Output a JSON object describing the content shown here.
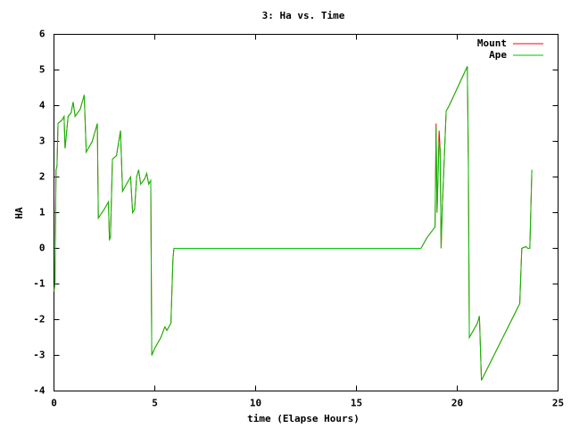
{
  "chart_data": {
    "type": "line",
    "title": "3: Ha vs. Time",
    "x_label": "time (Elapse Hours)",
    "y_label": "HA",
    "x": [
      0,
      0.05,
      0.1,
      0.15,
      0.2,
      0.4,
      0.5,
      0.55,
      0.7,
      0.85,
      0.95,
      1.05,
      1.3,
      1.5,
      1.6,
      1.9,
      2.1,
      2.15,
      2.2,
      2.5,
      2.7,
      2.75,
      2.8,
      2.9,
      3.1,
      3.3,
      3.4,
      3.7,
      3.8,
      3.9,
      4.0,
      4.1,
      4.2,
      4.3,
      4.5,
      4.6,
      4.7,
      4.8,
      4.85,
      5.0,
      5.3,
      5.5,
      5.6,
      5.8,
      5.9,
      5.95,
      18.2,
      18.5,
      18.9,
      18.95,
      19.0,
      19.1,
      19.15,
      19.2,
      19.25,
      19.45,
      19.6,
      20.5,
      20.55,
      20.6,
      21.0,
      21.1,
      21.2,
      23.1,
      23.2,
      23.4,
      23.5,
      23.6,
      23.7
    ],
    "series": [
      {
        "name": "Mount",
        "color": "#ff0000",
        "values": [
          -1.2,
          -1.0,
          2.2,
          2.3,
          3.5,
          3.6,
          3.7,
          2.8,
          3.7,
          3.8,
          4.1,
          3.7,
          3.9,
          4.3,
          2.7,
          3.0,
          3.4,
          3.5,
          0.85,
          1.1,
          1.3,
          0.25,
          0.3,
          2.5,
          2.6,
          3.3,
          1.6,
          1.9,
          2.0,
          1.0,
          1.1,
          2.0,
          2.2,
          1.8,
          1.95,
          2.1,
          1.8,
          1.9,
          -3.0,
          -2.8,
          -2.5,
          -2.2,
          -2.3,
          -2.1,
          -0.3,
          0,
          0,
          0.3,
          0.6,
          3.5,
          1.0,
          3.3,
          2.8,
          0,
          1.0,
          3.85,
          4.0,
          5.1,
          2.5,
          -2.5,
          -2.1,
          -1.9,
          -3.7,
          -1.55,
          0,
          0.05,
          0,
          0,
          2.2
        ]
      },
      {
        "name": "Ape",
        "color": "#00c000",
        "values": [
          -1.2,
          -1.0,
          2.2,
          2.3,
          3.5,
          3.6,
          3.7,
          2.8,
          3.7,
          3.8,
          4.1,
          3.7,
          3.9,
          4.3,
          2.7,
          3.0,
          3.4,
          3.5,
          0.85,
          1.1,
          1.3,
          0.25,
          0.3,
          2.5,
          2.6,
          3.3,
          1.6,
          1.9,
          2.0,
          1.0,
          1.1,
          2.0,
          2.2,
          1.8,
          1.95,
          2.1,
          1.8,
          1.9,
          -3.0,
          -2.8,
          -2.5,
          -2.2,
          -2.3,
          -2.1,
          -0.3,
          0,
          0,
          0.3,
          0.6,
          3.4,
          1.0,
          3.0,
          2.8,
          0,
          1.0,
          3.85,
          4.0,
          5.1,
          2.5,
          -2.5,
          -2.1,
          -1.9,
          -3.7,
          -1.55,
          0,
          0.05,
          0,
          0,
          2.2
        ]
      }
    ],
    "xlim": [
      0,
      25
    ],
    "xticks": [
      0,
      5,
      10,
      15,
      20,
      25
    ],
    "ylim": [
      -4,
      6
    ],
    "yticks": [
      -4,
      -3,
      -2,
      -1,
      0,
      1,
      2,
      3,
      4,
      5,
      6
    ],
    "legend": "top-right",
    "grid": false
  }
}
